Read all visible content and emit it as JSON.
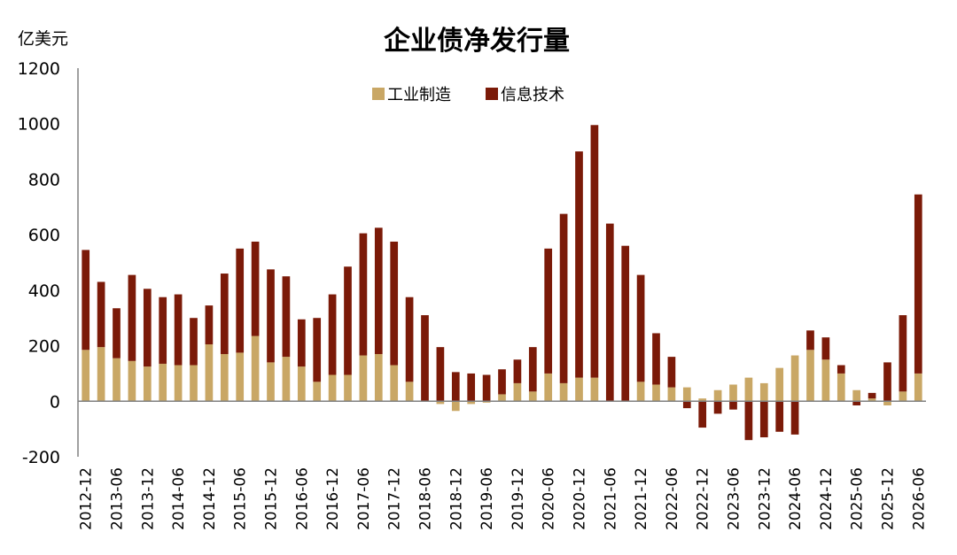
{
  "chart_data": {
    "type": "bar",
    "stacked": true,
    "title": "企业债净发行量",
    "unit_label": "亿美元",
    "ylim": [
      -200,
      1200
    ],
    "yticks": [
      -200,
      0,
      200,
      400,
      600,
      800,
      1000,
      1200
    ],
    "legend_position": "top-center",
    "colors": {
      "industrial": "#c9a765",
      "info_tech": "#7b1a08"
    },
    "categories": [
      "2012-12",
      "2013-03",
      "2013-06",
      "2013-09",
      "2013-12",
      "2014-03",
      "2014-06",
      "2014-09",
      "2014-12",
      "2015-03",
      "2015-06",
      "2015-09",
      "2015-12",
      "2016-03",
      "2016-06",
      "2016-09",
      "2016-12",
      "2017-03",
      "2017-06",
      "2017-09",
      "2017-12",
      "2018-03",
      "2018-06",
      "2018-09",
      "2018-12",
      "2019-03",
      "2019-06",
      "2019-09",
      "2019-12",
      "2020-03",
      "2020-06",
      "2020-09",
      "2020-12",
      "2021-03",
      "2021-06",
      "2021-09",
      "2021-12",
      "2022-03",
      "2022-06",
      "2022-09",
      "2022-12",
      "2023-03",
      "2023-06",
      "2023-09",
      "2023-12",
      "2024-03",
      "2024-06",
      "2024-09",
      "2024-12",
      "2025-03",
      "2025-06",
      "2025-09",
      "2025-12",
      "2026-03",
      "2026-06"
    ],
    "x_tick_labels": [
      "2012-12",
      "2013-06",
      "2013-12",
      "2014-06",
      "2014-12",
      "2015-06",
      "2015-12",
      "2016-06",
      "2016-12",
      "2017-06",
      "2017-12",
      "2018-06",
      "2018-12",
      "2019-06",
      "2019-12",
      "2020-06",
      "2020-12",
      "2021-06",
      "2021-12",
      "2022-06",
      "2022-12",
      "2023-06",
      "2023-12",
      "2024-06",
      "2024-12",
      "2025-06",
      "2025-12",
      "2026-06"
    ],
    "series": [
      {
        "name": "工业制造",
        "key": "industrial",
        "values": [
          185,
          195,
          155,
          145,
          125,
          135,
          130,
          130,
          205,
          170,
          175,
          235,
          140,
          160,
          125,
          70,
          95,
          95,
          165,
          170,
          130,
          70,
          0,
          -10,
          -35,
          -10,
          -5,
          25,
          65,
          35,
          100,
          65,
          85,
          85,
          0,
          0,
          70,
          60,
          50,
          50,
          10,
          40,
          60,
          85,
          65,
          120,
          165,
          185,
          150,
          100,
          40,
          10,
          -15,
          35,
          100
        ]
      },
      {
        "name": "信息技术",
        "key": "info_tech",
        "values": [
          360,
          235,
          180,
          310,
          280,
          240,
          255,
          170,
          140,
          290,
          375,
          340,
          335,
          290,
          170,
          230,
          290,
          390,
          440,
          455,
          445,
          305,
          310,
          195,
          105,
          100,
          95,
          90,
          85,
          160,
          450,
          610,
          815,
          910,
          640,
          560,
          385,
          185,
          110,
          -25,
          -95,
          -45,
          -30,
          -140,
          -130,
          -110,
          -120,
          70,
          80,
          30,
          -15,
          20,
          140,
          275,
          645
        ]
      }
    ]
  }
}
